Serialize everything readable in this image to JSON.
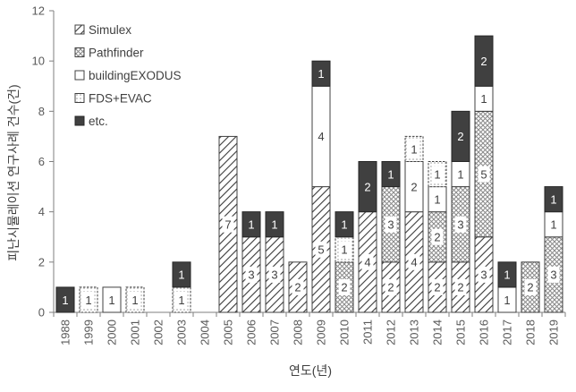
{
  "chart_data": {
    "type": "bar",
    "stacked": true,
    "xlabel": "연도(년)",
    "ylabel": "피난시뮬레이션 연구사례 건수(건)",
    "ylim": [
      0,
      12
    ],
    "yticks": [
      "0",
      "2",
      "4",
      "6",
      "8",
      "10",
      "12"
    ],
    "grid": false,
    "legend_position": "top-left",
    "categories": [
      "1988",
      "1999",
      "2000",
      "2001",
      "2002",
      "2003",
      "2004",
      "2005",
      "2006",
      "2007",
      "2008",
      "2009",
      "2010",
      "2011",
      "2012",
      "2013",
      "2014",
      "2015",
      "2016",
      "2017",
      "2018",
      "2019"
    ],
    "series": [
      {
        "name": "Simulex",
        "pattern": "diagonal",
        "values": [
          0,
          0,
          0,
          0,
          0,
          0,
          0,
          7,
          3,
          3,
          2,
          5,
          0,
          4,
          2,
          4,
          2,
          2,
          3,
          0,
          0,
          0
        ]
      },
      {
        "name": "Pathfinder",
        "pattern": "cross",
        "values": [
          0,
          0,
          0,
          0,
          0,
          0,
          0,
          0,
          0,
          0,
          0,
          0,
          2,
          0,
          3,
          0,
          2,
          3,
          5,
          0,
          2,
          3
        ]
      },
      {
        "name": "buildingEXODUS",
        "pattern": "white",
        "values": [
          0,
          0,
          1,
          0,
          0,
          0,
          0,
          0,
          0,
          0,
          0,
          4,
          0,
          0,
          0,
          2,
          1,
          1,
          1,
          1,
          0,
          1
        ]
      },
      {
        "name": "FDS+EVAC",
        "pattern": "dotted",
        "values": [
          0,
          1,
          0,
          1,
          0,
          1,
          0,
          0,
          0,
          0,
          0,
          0,
          1,
          0,
          0,
          1,
          1,
          0,
          0,
          0,
          0,
          0
        ]
      },
      {
        "name": "etc.",
        "pattern": "dark",
        "values": [
          1,
          0,
          0,
          0,
          0,
          1,
          0,
          0,
          1,
          1,
          0,
          1,
          1,
          2,
          1,
          0,
          0,
          2,
          2,
          1,
          0,
          1
        ]
      }
    ]
  }
}
